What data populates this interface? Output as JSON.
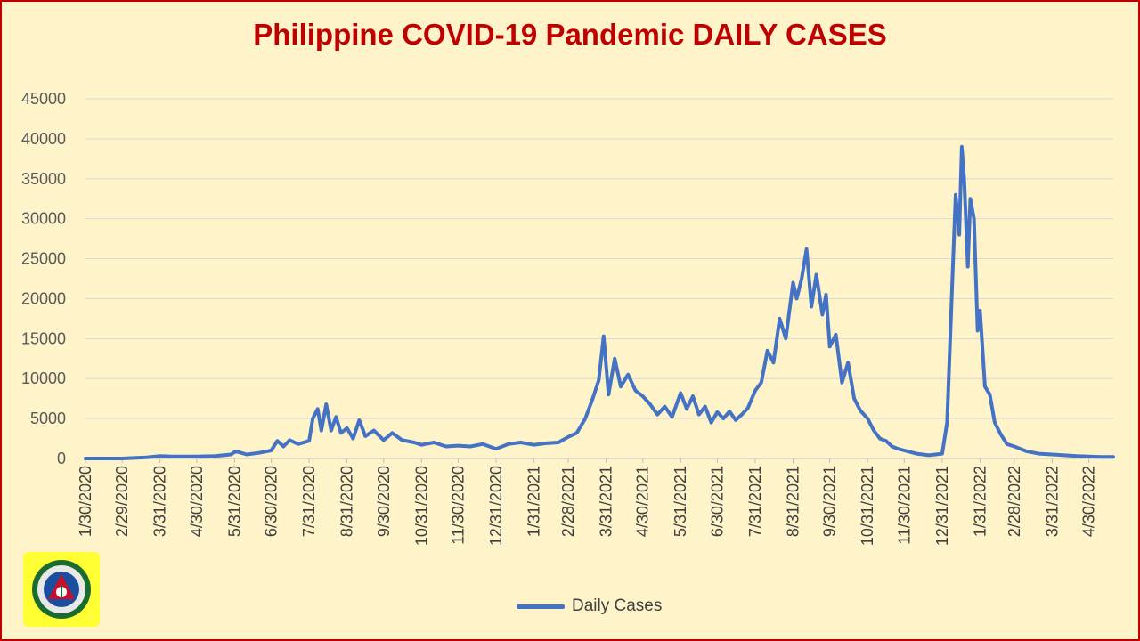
{
  "chart_data": {
    "type": "line",
    "title": "Philippine COVID-19 Pandemic DAILY CASES",
    "xlabel": "",
    "ylabel": "",
    "ylim": [
      0,
      45000
    ],
    "y_ticks": [
      "0",
      "5000",
      "10000",
      "15000",
      "20000",
      "25000",
      "30000",
      "35000",
      "40000",
      "45000"
    ],
    "x_tick_labels": [
      "1/30/2020",
      "2/29/2020",
      "3/31/2020",
      "4/30/2020",
      "5/31/2020",
      "6/30/2020",
      "7/31/2020",
      "8/31/2020",
      "9/30/2020",
      "10/31/2020",
      "11/30/2020",
      "12/31/2020",
      "1/31/2021",
      "2/28/2021",
      "3/31/2021",
      "4/30/2021",
      "5/31/2021",
      "6/30/2021",
      "7/31/2021",
      "8/31/2021",
      "9/30/2021",
      "10/31/2021",
      "11/30/2021",
      "12/31/2021",
      "1/31/2022",
      "2/28/2022",
      "3/31/2022",
      "4/30/2022"
    ],
    "grid": true,
    "legend_position": "bottom",
    "series": [
      {
        "name": "Daily Cases",
        "color": "#4472c4",
        "points": [
          [
            "1/30/2020",
            0
          ],
          [
            "2/29/2020",
            0
          ],
          [
            "3/20/2020",
            150
          ],
          [
            "3/31/2020",
            300
          ],
          [
            "4/10/2020",
            250
          ],
          [
            "4/30/2020",
            250
          ],
          [
            "5/15/2020",
            300
          ],
          [
            "5/28/2020",
            500
          ],
          [
            "6/1/2020",
            900
          ],
          [
            "6/10/2020",
            500
          ],
          [
            "6/20/2020",
            700
          ],
          [
            "6/30/2020",
            1000
          ],
          [
            "7/5/2020",
            2200
          ],
          [
            "7/10/2020",
            1500
          ],
          [
            "7/15/2020",
            2300
          ],
          [
            "7/22/2020",
            1800
          ],
          [
            "7/31/2020",
            2200
          ],
          [
            "8/3/2020",
            5000
          ],
          [
            "8/7/2020",
            6200
          ],
          [
            "8/10/2020",
            3500
          ],
          [
            "8/14/2020",
            6800
          ],
          [
            "8/18/2020",
            3500
          ],
          [
            "8/22/2020",
            5200
          ],
          [
            "8/26/2020",
            3200
          ],
          [
            "8/31/2020",
            3800
          ],
          [
            "9/5/2020",
            2500
          ],
          [
            "9/10/2020",
            4800
          ],
          [
            "9/15/2020",
            2800
          ],
          [
            "9/22/2020",
            3500
          ],
          [
            "9/30/2020",
            2300
          ],
          [
            "10/7/2020",
            3200
          ],
          [
            "10/15/2020",
            2300
          ],
          [
            "10/25/2020",
            2000
          ],
          [
            "10/31/2020",
            1700
          ],
          [
            "11/10/2020",
            2000
          ],
          [
            "11/20/2020",
            1500
          ],
          [
            "11/30/2020",
            1600
          ],
          [
            "12/10/2020",
            1500
          ],
          [
            "12/20/2020",
            1800
          ],
          [
            "12/31/2020",
            1200
          ],
          [
            "1/10/2021",
            1800
          ],
          [
            "1/20/2021",
            2000
          ],
          [
            "1/31/2021",
            1700
          ],
          [
            "2/10/2021",
            1900
          ],
          [
            "2/20/2021",
            2000
          ],
          [
            "2/28/2021",
            2700
          ],
          [
            "3/7/2021",
            3200
          ],
          [
            "3/14/2021",
            5000
          ],
          [
            "3/20/2021",
            7500
          ],
          [
            "3/25/2021",
            9800
          ],
          [
            "3/29/2021",
            15300
          ],
          [
            "4/2/2021",
            8000
          ],
          [
            "4/7/2021",
            12500
          ],
          [
            "4/12/2021",
            9000
          ],
          [
            "4/18/2021",
            10500
          ],
          [
            "4/24/2021",
            8500
          ],
          [
            "4/30/2021",
            7800
          ],
          [
            "5/6/2021",
            6800
          ],
          [
            "5/12/2021",
            5500
          ],
          [
            "5/18/2021",
            6500
          ],
          [
            "5/24/2021",
            5200
          ],
          [
            "5/31/2021",
            8200
          ],
          [
            "6/5/2021",
            6200
          ],
          [
            "6/10/2021",
            7800
          ],
          [
            "6/15/2021",
            5500
          ],
          [
            "6/20/2021",
            6500
          ],
          [
            "6/25/2021",
            4500
          ],
          [
            "6/30/2021",
            5800
          ],
          [
            "7/5/2021",
            5000
          ],
          [
            "7/10/2021",
            5900
          ],
          [
            "7/15/2021",
            4800
          ],
          [
            "7/20/2021",
            5500
          ],
          [
            "7/25/2021",
            6300
          ],
          [
            "7/31/2021",
            8500
          ],
          [
            "8/5/2021",
            9500
          ],
          [
            "8/10/2021",
            13500
          ],
          [
            "8/15/2021",
            12000
          ],
          [
            "8/20/2021",
            17500
          ],
          [
            "8/25/2021",
            15000
          ],
          [
            "8/31/2021",
            22000
          ],
          [
            "9/3/2021",
            20000
          ],
          [
            "9/7/2021",
            22500
          ],
          [
            "9/11/2021",
            26200
          ],
          [
            "9/15/2021",
            19000
          ],
          [
            "9/19/2021",
            23000
          ],
          [
            "9/24/2021",
            18000
          ],
          [
            "9/27/2021",
            20500
          ],
          [
            "9/30/2021",
            14000
          ],
          [
            "10/5/2021",
            15500
          ],
          [
            "10/10/2021",
            9500
          ],
          [
            "10/15/2021",
            12000
          ],
          [
            "10/20/2021",
            7500
          ],
          [
            "10/25/2021",
            6000
          ],
          [
            "10/31/2021",
            5000
          ],
          [
            "11/5/2021",
            3500
          ],
          [
            "11/10/2021",
            2500
          ],
          [
            "11/15/2021",
            2200
          ],
          [
            "11/20/2021",
            1500
          ],
          [
            "11/25/2021",
            1200
          ],
          [
            "11/30/2021",
            1000
          ],
          [
            "12/10/2021",
            600
          ],
          [
            "12/20/2021",
            400
          ],
          [
            "12/31/2021",
            600
          ],
          [
            "1/4/2022",
            4500
          ],
          [
            "1/8/2022",
            21000
          ],
          [
            "1/11/2022",
            33000
          ],
          [
            "1/14/2022",
            28000
          ],
          [
            "1/16/2022",
            39000
          ],
          [
            "1/18/2022",
            35000
          ],
          [
            "1/21/2022",
            24000
          ],
          [
            "1/23/2022",
            32500
          ],
          [
            "1/26/2022",
            30000
          ],
          [
            "1/29/2022",
            16000
          ],
          [
            "1/31/2022",
            18500
          ],
          [
            "2/4/2022",
            9000
          ],
          [
            "2/8/2022",
            8000
          ],
          [
            "2/12/2022",
            4500
          ],
          [
            "2/17/2022",
            3000
          ],
          [
            "2/22/2022",
            1800
          ],
          [
            "2/28/2022",
            1500
          ],
          [
            "3/10/2022",
            900
          ],
          [
            "3/20/2022",
            600
          ],
          [
            "3/31/2022",
            500
          ],
          [
            "4/10/2022",
            400
          ],
          [
            "4/20/2022",
            300
          ],
          [
            "4/30/2022",
            250
          ],
          [
            "5/10/2022",
            200
          ],
          [
            "5/20/2022",
            200
          ]
        ]
      }
    ]
  },
  "logo": {
    "label": "REPUBLIC OF THE PHILIPPINES DEPARTMENT OF HEALTH"
  }
}
